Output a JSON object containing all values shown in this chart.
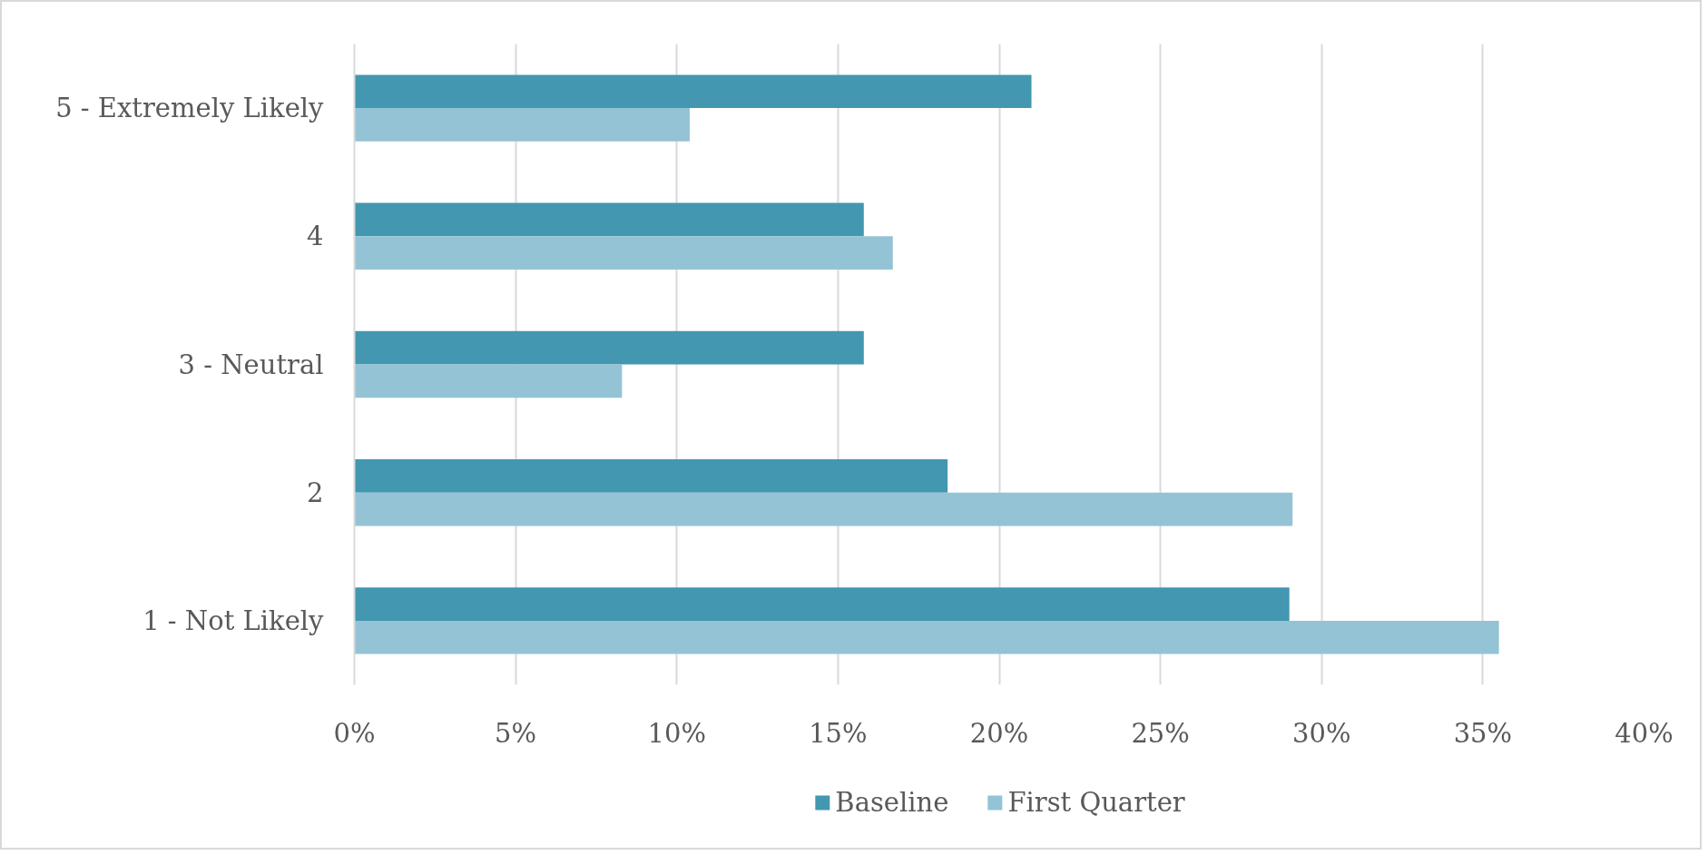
{
  "chart_data": {
    "type": "bar",
    "orientation": "horizontal",
    "categories": [
      "5 - Extremely Likely",
      "4",
      "3 - Neutral",
      "2",
      "1 - Not Likely"
    ],
    "series": [
      {
        "name": "Baseline",
        "color": "#4397b0",
        "values": [
          21.0,
          15.8,
          15.8,
          18.4,
          29.0
        ]
      },
      {
        "name": "First Quarter",
        "color": "#93c3d5",
        "values": [
          10.4,
          16.7,
          8.3,
          29.1,
          35.5
        ]
      }
    ],
    "xlim": [
      0,
      40
    ],
    "xticks": [
      {
        "value": 0,
        "label": "0%"
      },
      {
        "value": 5,
        "label": "5%"
      },
      {
        "value": 10,
        "label": "10%"
      },
      {
        "value": 15,
        "label": "15%"
      },
      {
        "value": 20,
        "label": "20%"
      },
      {
        "value": 25,
        "label": "25%"
      },
      {
        "value": 30,
        "label": "30%"
      },
      {
        "value": 35,
        "label": "35%"
      },
      {
        "value": 40,
        "label": "40%"
      }
    ],
    "grid": "x",
    "legend": "bottom"
  }
}
